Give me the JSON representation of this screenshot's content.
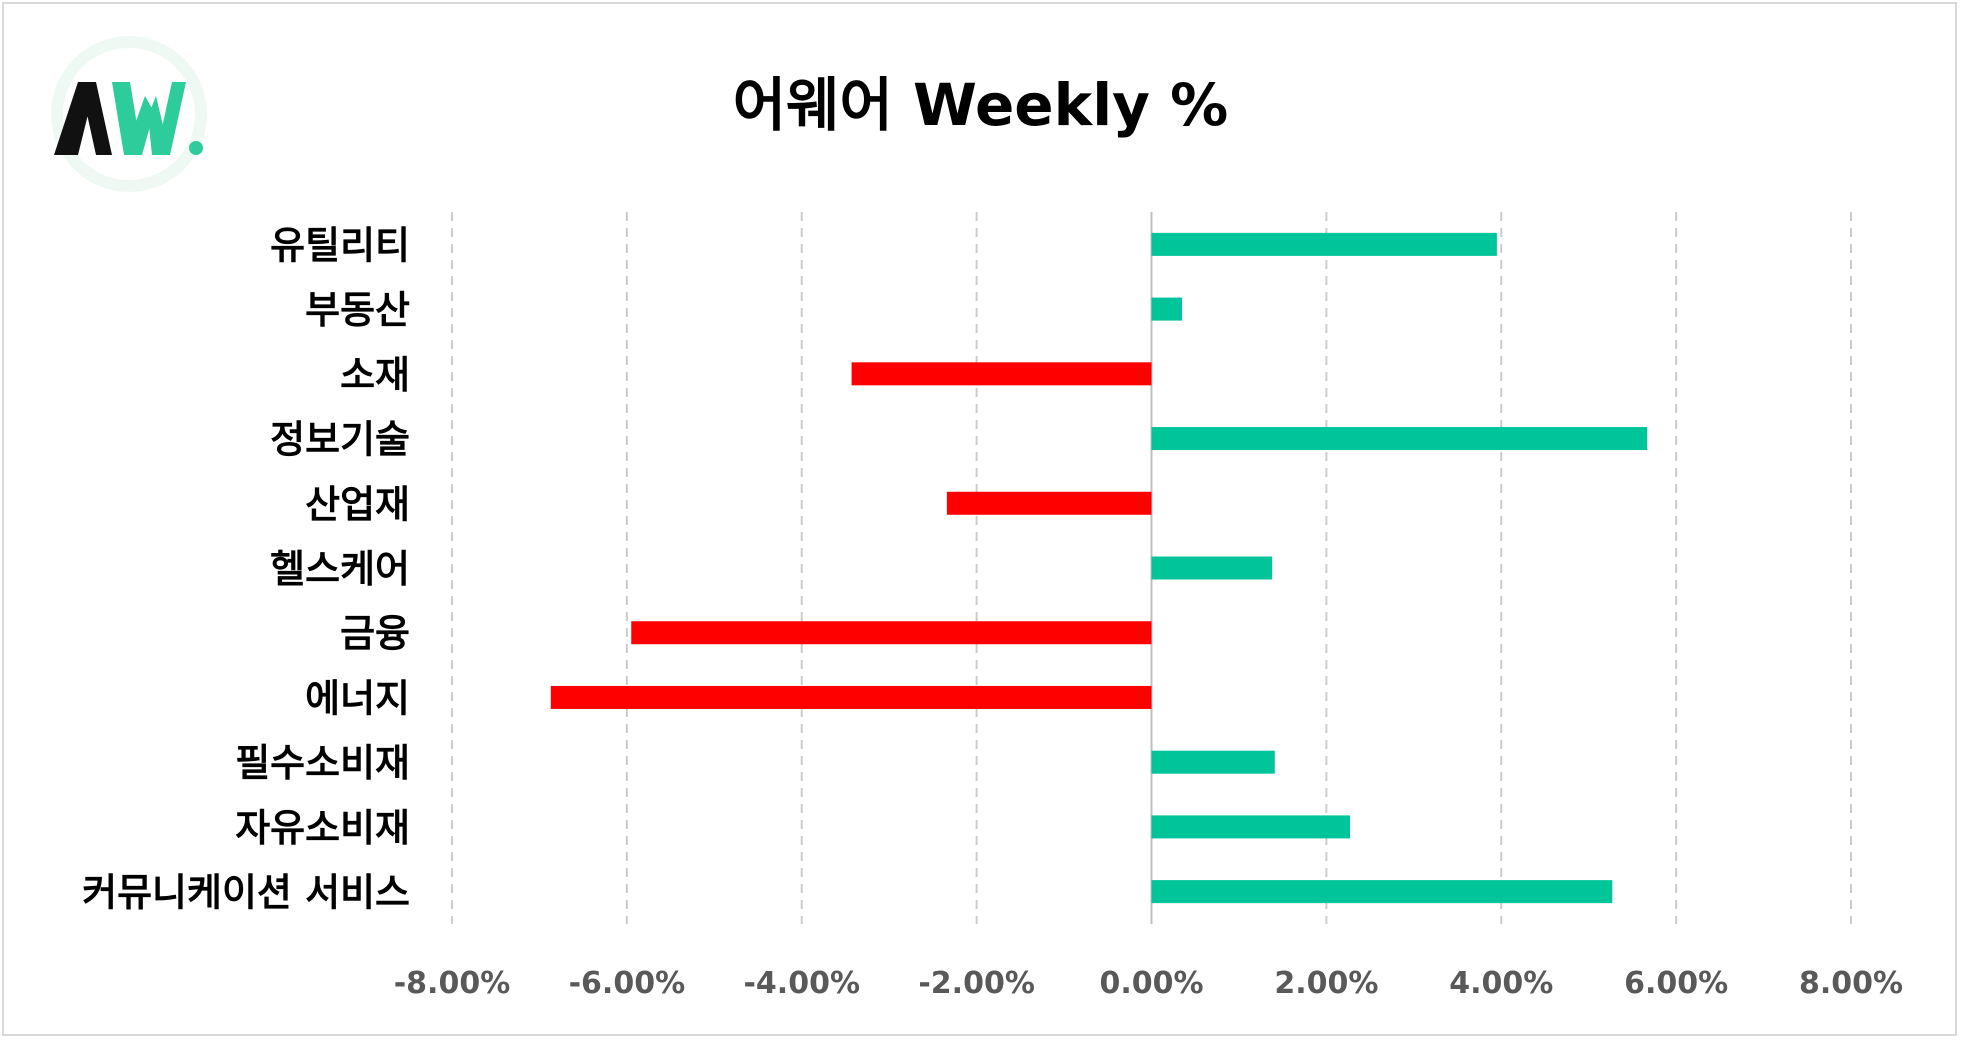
{
  "title": "어웨어 Weekly %",
  "logo": {
    "text": "AW.",
    "colors": {
      "dark": "#111111",
      "accent": "#2ecc9a",
      "halo": "#e8f7f1"
    }
  },
  "colors": {
    "positive": "#00c49a",
    "negative": "#ff0000",
    "grid": "#cccccc",
    "axis": "#bfbfbf"
  },
  "chart_data": {
    "type": "bar",
    "orientation": "horizontal",
    "categories": [
      "유틸리티",
      "부동산",
      "소재",
      "정보기술",
      "산업재",
      "헬스케어",
      "금융",
      "에너지",
      "필수소비재",
      "자유소비재",
      "커뮤니케이션 서비스"
    ],
    "values": [
      3.95,
      0.35,
      -3.43,
      5.67,
      -2.34,
      1.38,
      -5.95,
      -6.87,
      1.41,
      2.27,
      5.27
    ],
    "xlim": [
      -8,
      8
    ],
    "ticks": [
      -8,
      -6,
      -4,
      -2,
      0,
      2,
      4,
      6,
      8
    ],
    "tick_labels": [
      "-8.00%",
      "-6.00%",
      "-4.00%",
      "-2.00%",
      "0.00%",
      "2.00%",
      "4.00%",
      "6.00%",
      "8.00%"
    ],
    "grid": true,
    "legend": "none"
  }
}
